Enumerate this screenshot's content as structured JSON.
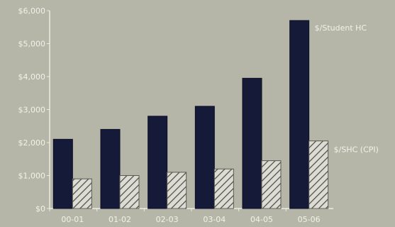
{
  "chart_data": {
    "type": "bar",
    "categories": [
      "00-01",
      "01-02",
      "02-03",
      "03-04",
      "04-05",
      "05-06"
    ],
    "series": [
      {
        "name": "$/Student HC",
        "color": "#151a38",
        "pattern": "solid",
        "values": [
          2100,
          2400,
          2800,
          3100,
          3950,
          5700
        ]
      },
      {
        "name": "$/SHC (CPI)",
        "color": "#d4d4cc",
        "pattern": "diagonal-hatch",
        "values": [
          900,
          1000,
          1100,
          1200,
          1450,
          2050
        ]
      }
    ],
    "y_ticks": [
      "$0",
      "$1,000",
      "$2,000",
      "$3,000",
      "$4,000",
      "$5,000",
      "$6,000"
    ],
    "ylim": [
      0,
      6000
    ],
    "background_color": "#b5b5a8",
    "legend_placement": "right, beside bar ends",
    "grid": false
  }
}
